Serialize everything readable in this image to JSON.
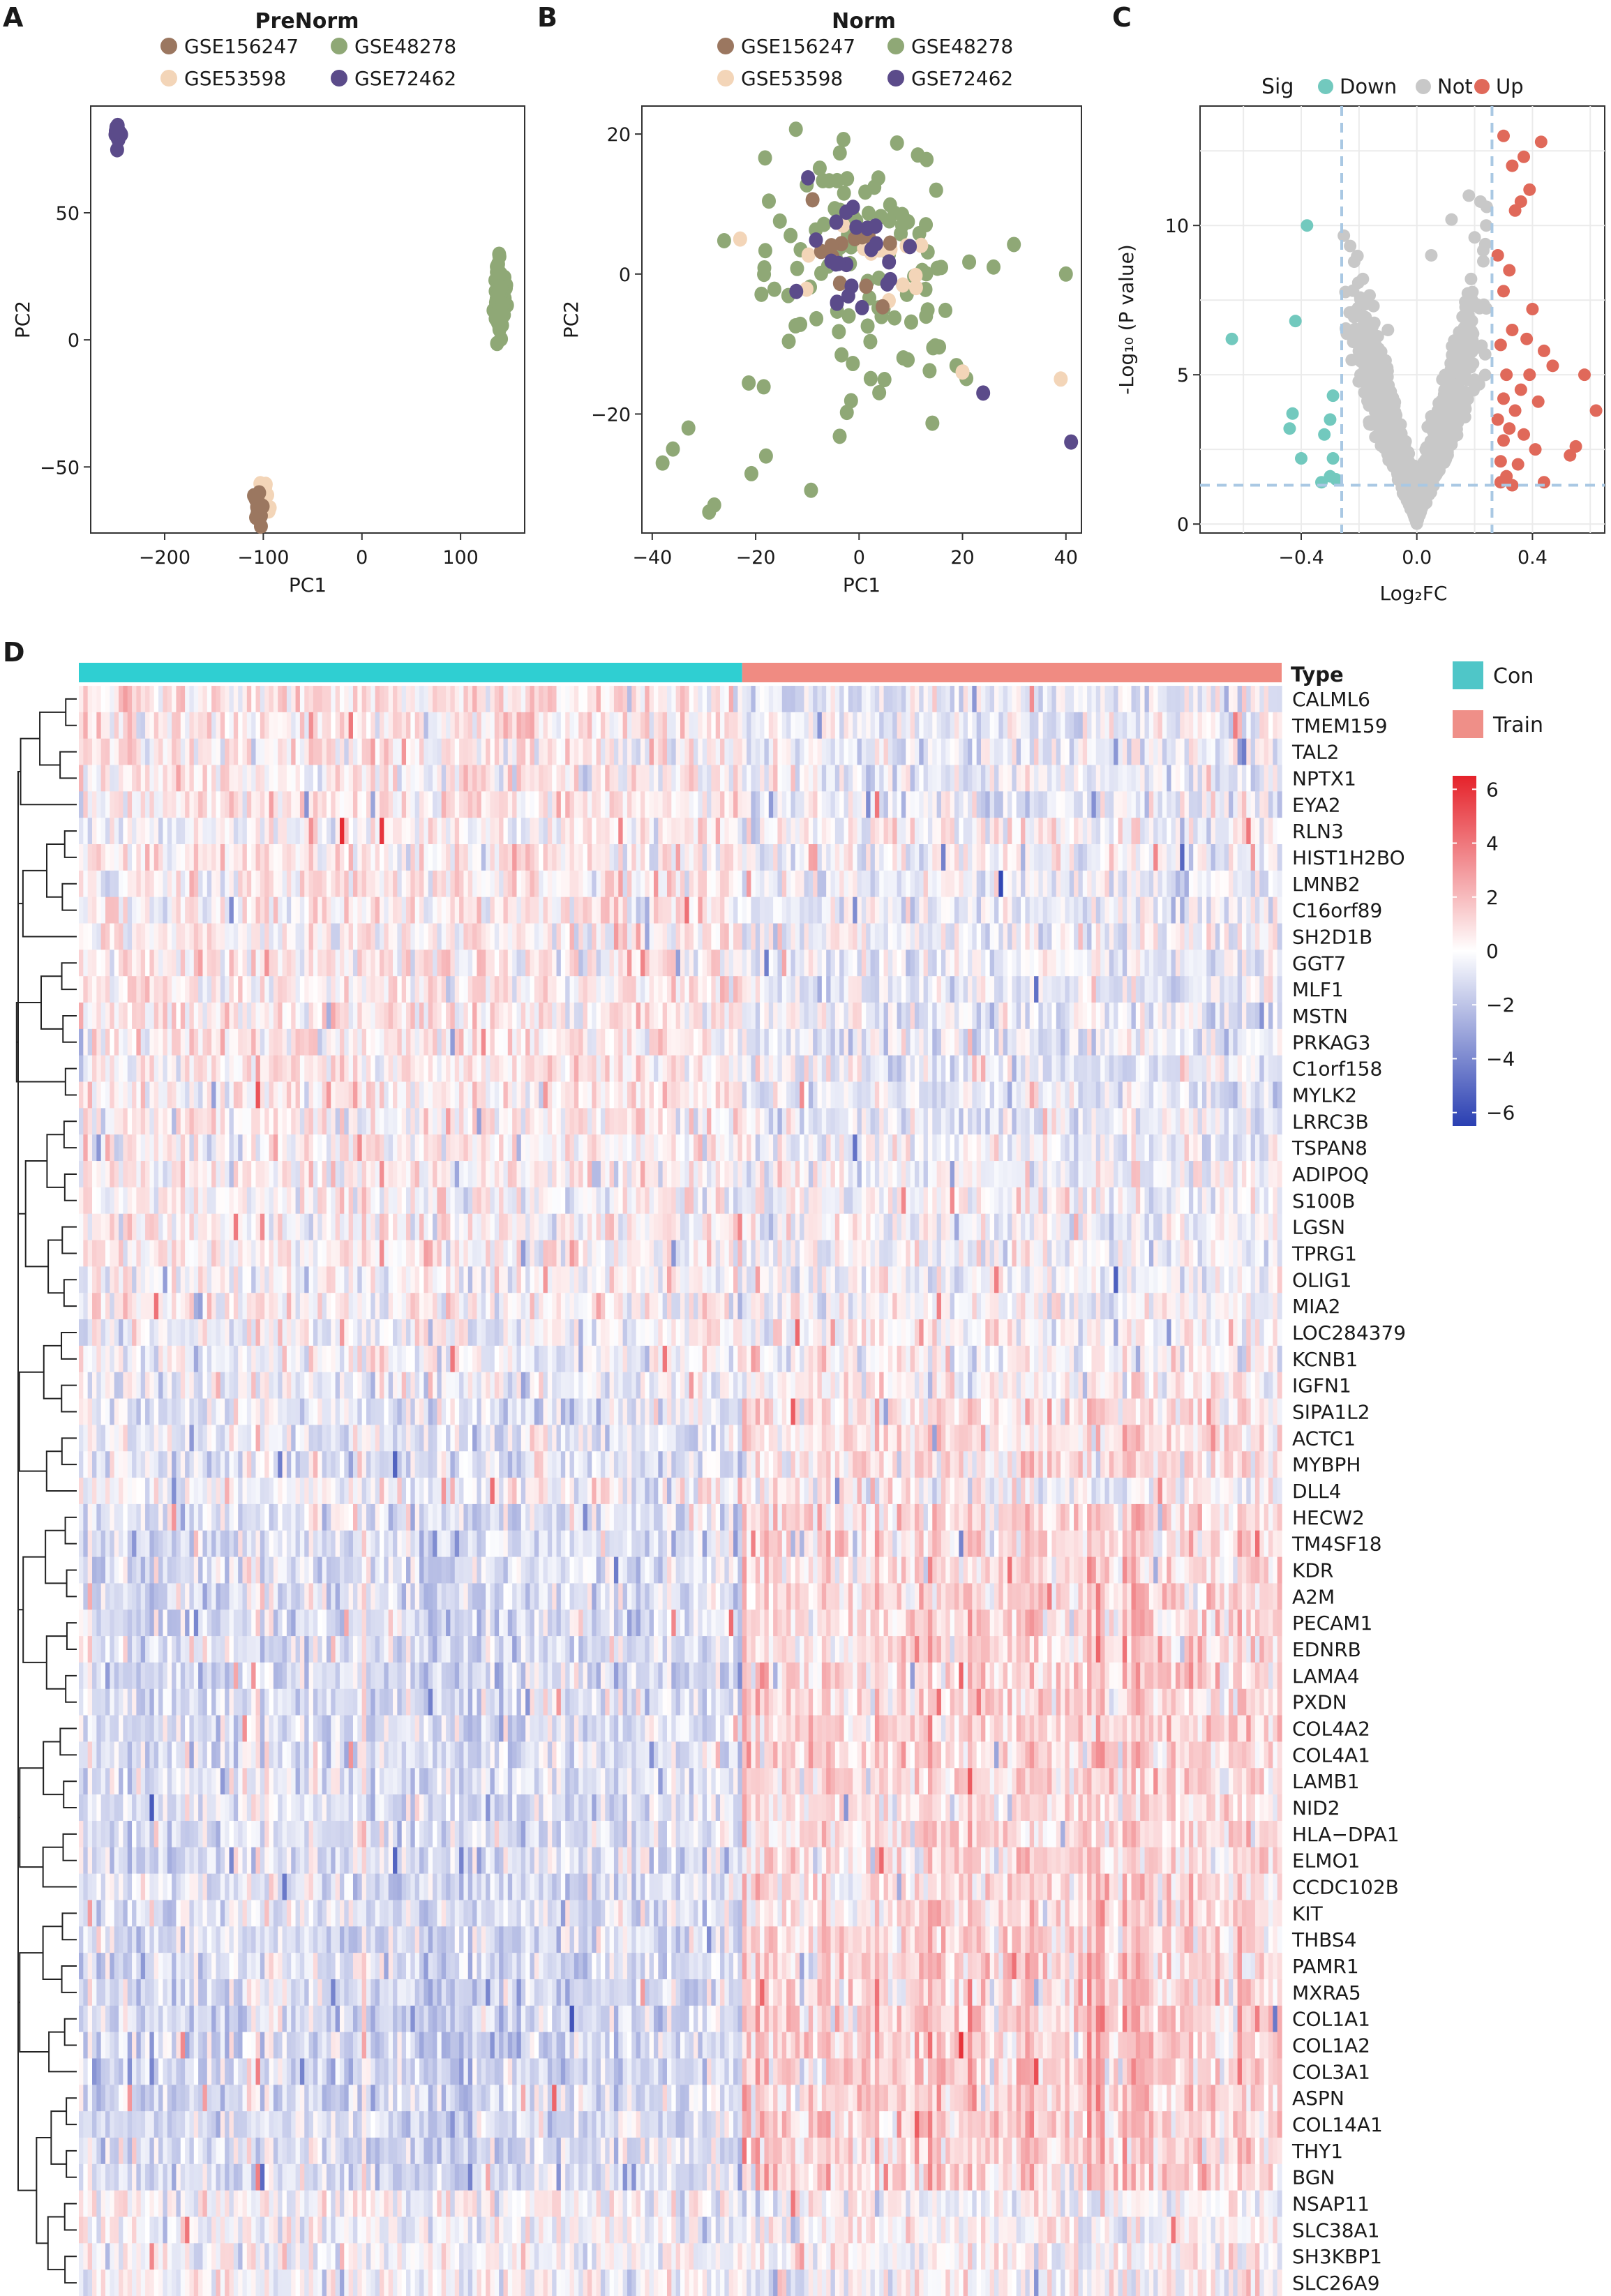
{
  "figure": {
    "panel_labels": [
      "A",
      "B",
      "C",
      "D"
    ]
  },
  "chart_data": [
    {
      "id": "A",
      "type": "scatter",
      "title": "PreNorm",
      "xlabel": "PC1",
      "ylabel": "PC2",
      "xlim": [
        -275,
        165
      ],
      "ylim": [
        -76,
        92
      ],
      "xticks": [
        -200,
        -100,
        0,
        100
      ],
      "yticks": [
        -50,
        0,
        50
      ],
      "legend_position": "top",
      "series": [
        {
          "name": "GSE156247",
          "color": "#9b7760",
          "cluster": {
            "cx": -104,
            "cy": -66,
            "sx": 2.5,
            "sy": 3.5,
            "n": 12
          }
        },
        {
          "name": "GSE48278",
          "color": "#8fa876",
          "cluster": {
            "cx": 140,
            "cy": 18,
            "sx": 2.5,
            "sy": 7,
            "n": 110
          }
        },
        {
          "name": "GSE53598",
          "color": "#f3d5b8",
          "cluster": {
            "cx": -99,
            "cy": -63,
            "sx": 2,
            "sy": 3.5,
            "n": 14
          }
        },
        {
          "name": "GSE72462",
          "color": "#5b4b8a",
          "cluster": {
            "cx": -247,
            "cy": 81,
            "sx": 2,
            "sy": 2,
            "n": 24
          }
        }
      ]
    },
    {
      "id": "B",
      "type": "scatter",
      "title": "Norm",
      "xlabel": "PC1",
      "ylabel": "PC2",
      "xlim": [
        -42,
        43
      ],
      "ylim": [
        -37,
        24
      ],
      "xticks": [
        -40,
        -20,
        0,
        20,
        40
      ],
      "yticks": [
        -20,
        0,
        20
      ],
      "legend_position": "top",
      "series": [
        {
          "name": "GSE156247",
          "color": "#9b7760",
          "cluster": {
            "cx": -2,
            "cy": 2,
            "sx": 6,
            "sy": 4,
            "n": 12
          }
        },
        {
          "name": "GSE48278",
          "color": "#8fa876",
          "cluster": {
            "cx": 0,
            "cy": 0,
            "sx": 11,
            "sy": 10,
            "n": 110
          },
          "points": [
            [
              -38,
              -27
            ],
            [
              -36,
              -25
            ],
            [
              -33,
              -22
            ],
            [
              -29,
              -34
            ],
            [
              -28,
              -33
            ],
            [
              -18,
              -26
            ],
            [
              40,
              0
            ],
            [
              26,
              1
            ],
            [
              20,
              -14
            ]
          ]
        },
        {
          "name": "GSE53598",
          "color": "#f3d5b8",
          "cluster": {
            "cx": 0,
            "cy": 1,
            "sx": 7,
            "sy": 4,
            "n": 14
          },
          "points": [
            [
              39,
              -15
            ],
            [
              -23,
              5
            ],
            [
              20,
              -14
            ]
          ]
        },
        {
          "name": "GSE72462",
          "color": "#5b4b8a",
          "cluster": {
            "cx": -3,
            "cy": 2,
            "sx": 6,
            "sy": 5,
            "n": 24
          },
          "points": [
            [
              41,
              -24
            ],
            [
              24,
              -17
            ]
          ]
        }
      ]
    },
    {
      "id": "C",
      "type": "scatter",
      "subtype": "volcano",
      "xlabel": "Log₂FC",
      "ylabel": "-Log₁₀ (P value)",
      "xlim": [
        -0.75,
        0.65
      ],
      "ylim": [
        -0.3,
        14
      ],
      "xticks": [
        -0.4,
        0.0,
        0.4
      ],
      "yticks": [
        0,
        5,
        10
      ],
      "fc_cutoff": 0.26,
      "p_cutoff": 1.3,
      "legend_title": "Sig",
      "legend_position": "top",
      "legend": [
        {
          "name": "Down",
          "color": "#72c9be"
        },
        {
          "name": "Not",
          "color": "#c8c8c8"
        },
        {
          "name": "Up",
          "color": "#e0695a"
        }
      ],
      "down_points": [
        [
          -0.64,
          6.2
        ],
        [
          -0.38,
          10.0
        ],
        [
          -0.42,
          6.8
        ],
        [
          -0.43,
          3.7
        ],
        [
          -0.44,
          3.2
        ],
        [
          -0.4,
          2.2
        ],
        [
          -0.29,
          4.3
        ],
        [
          -0.3,
          3.5
        ],
        [
          -0.32,
          3.0
        ],
        [
          -0.29,
          2.2
        ],
        [
          -0.3,
          1.6
        ],
        [
          -0.28,
          1.5
        ],
        [
          -0.33,
          1.4
        ]
      ],
      "up_points": [
        [
          0.3,
          13.0
        ],
        [
          0.37,
          12.3
        ],
        [
          0.43,
          12.8
        ],
        [
          0.33,
          12.0
        ],
        [
          0.39,
          11.2
        ],
        [
          0.36,
          10.8
        ],
        [
          0.34,
          10.5
        ],
        [
          0.28,
          9.0
        ],
        [
          0.32,
          8.5
        ],
        [
          0.3,
          7.8
        ],
        [
          0.4,
          7.2
        ],
        [
          0.33,
          6.5
        ],
        [
          0.38,
          6.2
        ],
        [
          0.44,
          5.8
        ],
        [
          0.29,
          6.0
        ],
        [
          0.47,
          5.3
        ],
        [
          0.39,
          5.0
        ],
        [
          0.31,
          5.0
        ],
        [
          0.36,
          4.5
        ],
        [
          0.3,
          4.2
        ],
        [
          0.42,
          4.1
        ],
        [
          0.34,
          3.8
        ],
        [
          0.28,
          3.5
        ],
        [
          0.32,
          3.2
        ],
        [
          0.37,
          3.0
        ],
        [
          0.3,
          2.8
        ],
        [
          0.41,
          2.5
        ],
        [
          0.29,
          2.1
        ],
        [
          0.35,
          2.0
        ],
        [
          0.31,
          1.6
        ],
        [
          0.29,
          1.4
        ],
        [
          0.44,
          1.4
        ],
        [
          0.33,
          1.3
        ],
        [
          0.55,
          2.6
        ],
        [
          0.53,
          2.3
        ],
        [
          0.62,
          3.8
        ],
        [
          0.58,
          5.0
        ]
      ]
    },
    {
      "id": "D",
      "type": "heatmap",
      "annotation_title": "Type",
      "groups": [
        {
          "name": "Con",
          "color": "#2fcfd2",
          "n": 150
        },
        {
          "name": "Train",
          "color": "#f08b82",
          "n": 122
        }
      ],
      "legend_groups": [
        {
          "name": "Con",
          "color": "#4fc6c8"
        },
        {
          "name": "Train",
          "color": "#ef8f88"
        }
      ],
      "color_scale": {
        "min": -6.5,
        "max": 6.5,
        "low": "#2a3fb2",
        "mid": "#ffffff",
        "high": "#e5222a",
        "ticks": [
          "6",
          "4",
          "2",
          "0",
          "-2",
          "-4",
          "-6"
        ],
        "tick_values": [
          6,
          4,
          2,
          0,
          -2,
          -4,
          -6
        ]
      },
      "genes": [
        "CALML6",
        "TMEM159",
        "TAL2",
        "NPTX1",
        "EYA2",
        "RLN3",
        "HIST1H2BO",
        "LMNB2",
        "C16orf89",
        "SH2D1B",
        "GGT7",
        "MLF1",
        "MSTN",
        "PRKAG3",
        "C1orf158",
        "MYLK2",
        "LRRC3B",
        "TSPAN8",
        "ADIPOQ",
        "S100B",
        "LGSN",
        "TPRG1",
        "OLIG1",
        "MIA2",
        "LOC284379",
        "KCNB1",
        "IGFN1",
        "SIPA1L2",
        "ACTC1",
        "MYBPH",
        "DLL4",
        "HECW2",
        "TM4SF18",
        "KDR",
        "A2M",
        "PECAM1",
        "EDNRB",
        "LAMA4",
        "PXDN",
        "COL4A2",
        "COL4A1",
        "LAMB1",
        "NID2",
        "HLA−DPA1",
        "ELMO1",
        "CCDC102B",
        "KIT",
        "THBS4",
        "PAMR1",
        "MXRA5",
        "COL1A1",
        "COL1A2",
        "COL3A1",
        "ASPN",
        "COL14A1",
        "THY1",
        "BGN",
        "NSAP11",
        "SLC38A1",
        "SH3KBP1",
        "SLC26A9"
      ],
      "gene_effect": [
        0.35,
        0.3,
        0.25,
        0.3,
        0.3,
        0.0,
        0.2,
        0.25,
        0.2,
        0.2,
        0.3,
        0.35,
        0.35,
        0.35,
        0.3,
        0.3,
        0.3,
        0.2,
        0.15,
        0.1,
        0.15,
        0.1,
        0.1,
        0.05,
        -0.05,
        -0.1,
        -0.2,
        -0.25,
        -0.25,
        -0.25,
        -0.1,
        -0.35,
        -0.35,
        -0.35,
        -0.35,
        -0.4,
        -0.4,
        -0.4,
        -0.35,
        -0.4,
        -0.4,
        -0.35,
        -0.3,
        -0.35,
        -0.3,
        -0.35,
        -0.35,
        -0.4,
        -0.45,
        -0.5,
        -0.55,
        -0.55,
        -0.55,
        -0.5,
        -0.45,
        -0.5,
        -0.5,
        0.0,
        -0.1,
        -0.05,
        -0.05
      ],
      "notable_cells": [
        {
          "gene": "RLN3",
          "sample": 59,
          "value": 6.2
        },
        {
          "gene": "RLN3",
          "sample": 68,
          "value": 5.8
        },
        {
          "gene": "LMNB2",
          "sample": 208,
          "value": -6.2
        },
        {
          "gene": "ELMO1",
          "sample": 71,
          "value": -5.0
        }
      ],
      "dendrogram": true
    }
  ]
}
